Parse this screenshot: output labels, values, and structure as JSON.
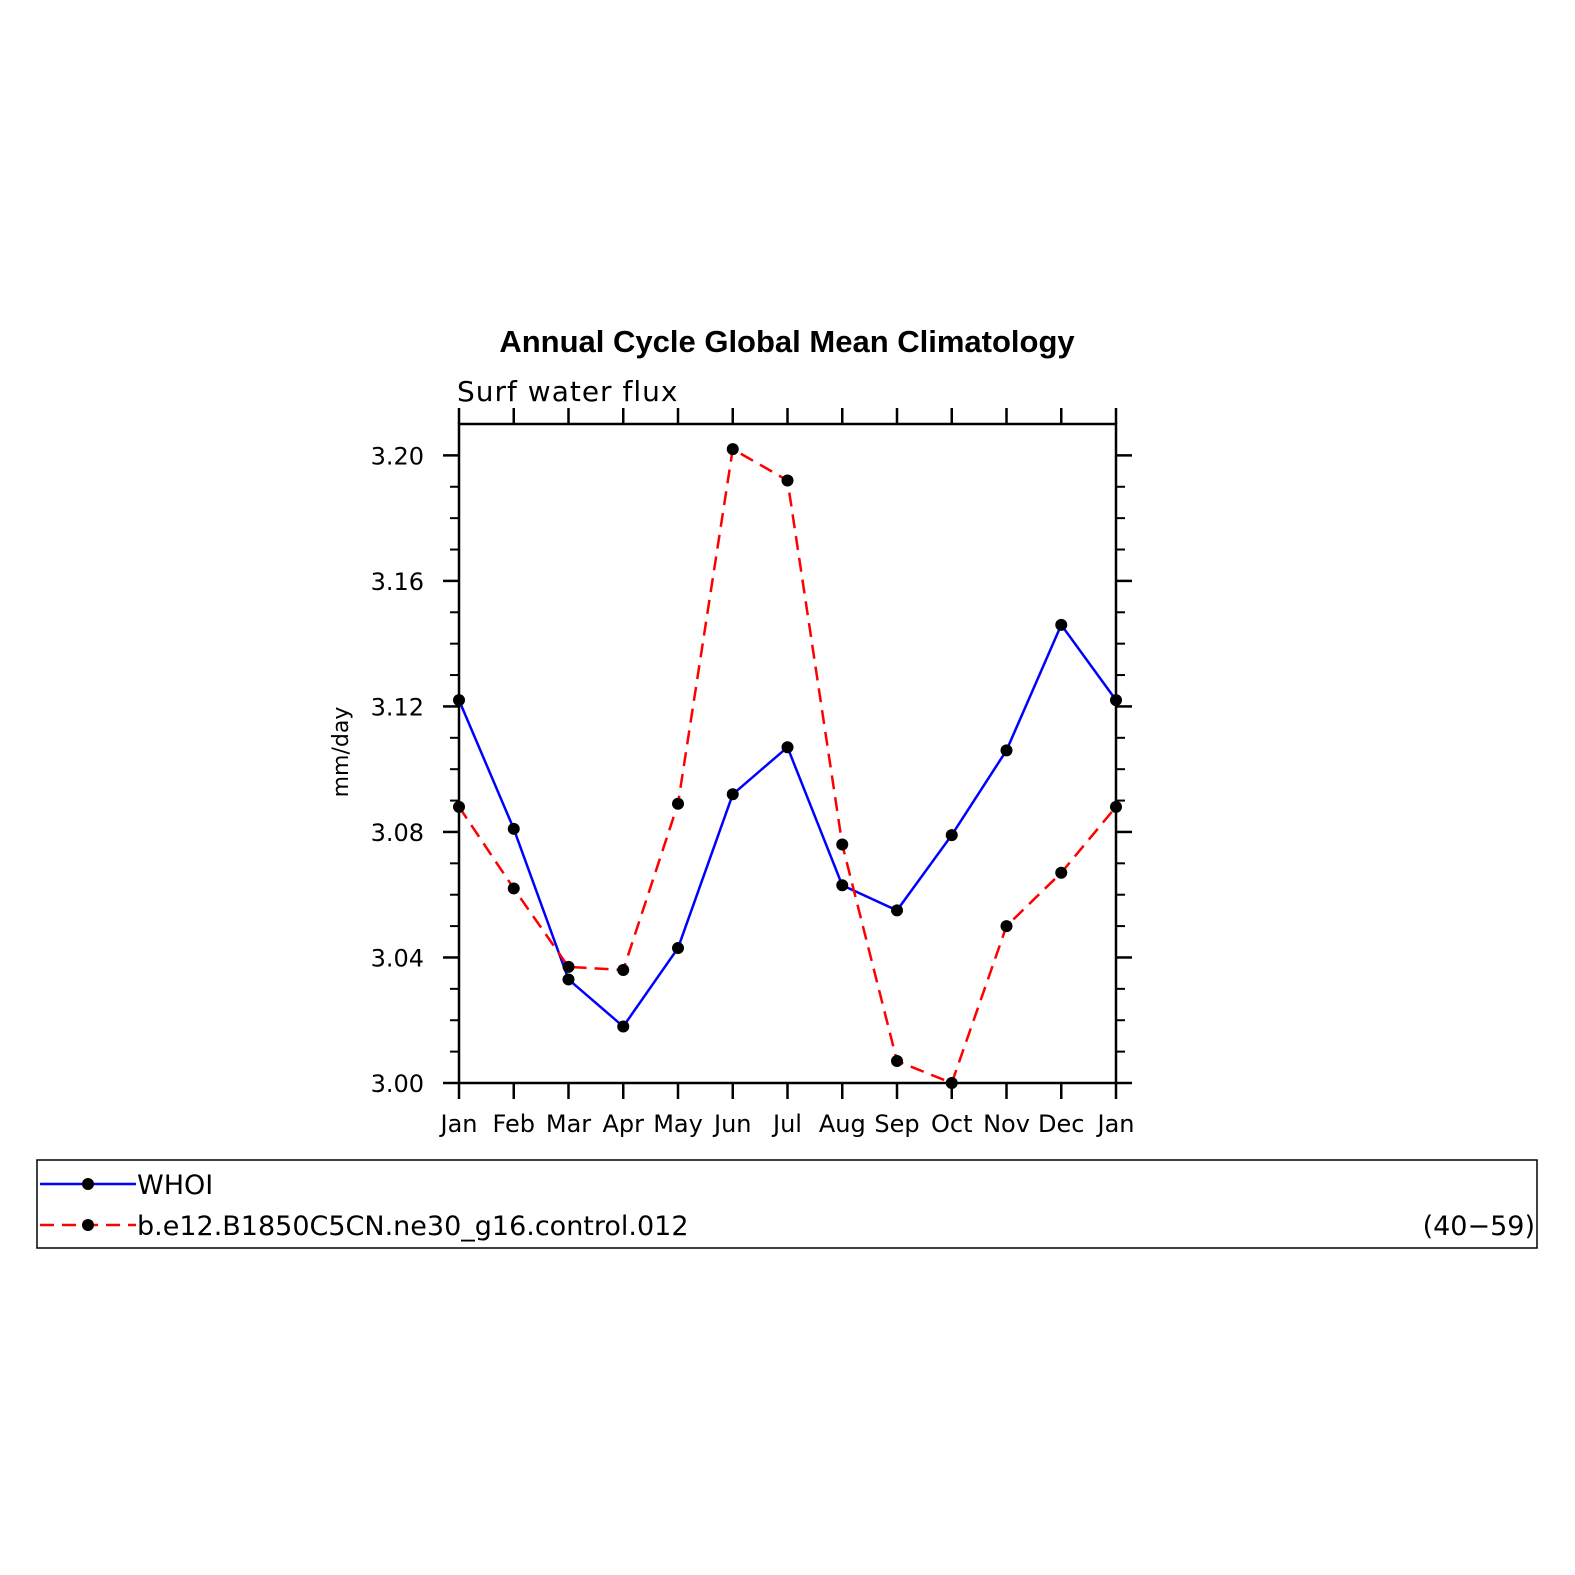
{
  "chart_data": {
    "type": "line",
    "title": "Annual Cycle Global Mean Climatology",
    "subtitle": "Surf water flux",
    "ylabel": "mm/day",
    "xlabel": "",
    "categories": [
      "Jan",
      "Feb",
      "Mar",
      "Apr",
      "May",
      "Jun",
      "Jul",
      "Aug",
      "Sep",
      "Oct",
      "Nov",
      "Dec",
      "Jan"
    ],
    "ylim": [
      3.0,
      3.21
    ],
    "yticks": [
      "3.00",
      "3.04",
      "3.08",
      "3.12",
      "3.16",
      "3.20"
    ],
    "grid": false,
    "legend_position": "bottom",
    "series": [
      {
        "name": "WHOI",
        "color": "#0000ff",
        "dash": "solid",
        "marker": "dot",
        "values": [
          3.122,
          3.081,
          3.033,
          3.018,
          3.043,
          3.092,
          3.107,
          3.063,
          3.055,
          3.079,
          3.106,
          3.146,
          3.122
        ]
      },
      {
        "name": "b.e12.B1850C5CN.ne30_g16.control.012",
        "note": "(40−59)",
        "color": "#ff0000",
        "dash": "dashed",
        "marker": "dot",
        "values": [
          3.088,
          3.062,
          3.037,
          3.036,
          3.089,
          3.202,
          3.192,
          3.076,
          3.007,
          3.0,
          3.05,
          3.067,
          3.088
        ]
      }
    ]
  }
}
